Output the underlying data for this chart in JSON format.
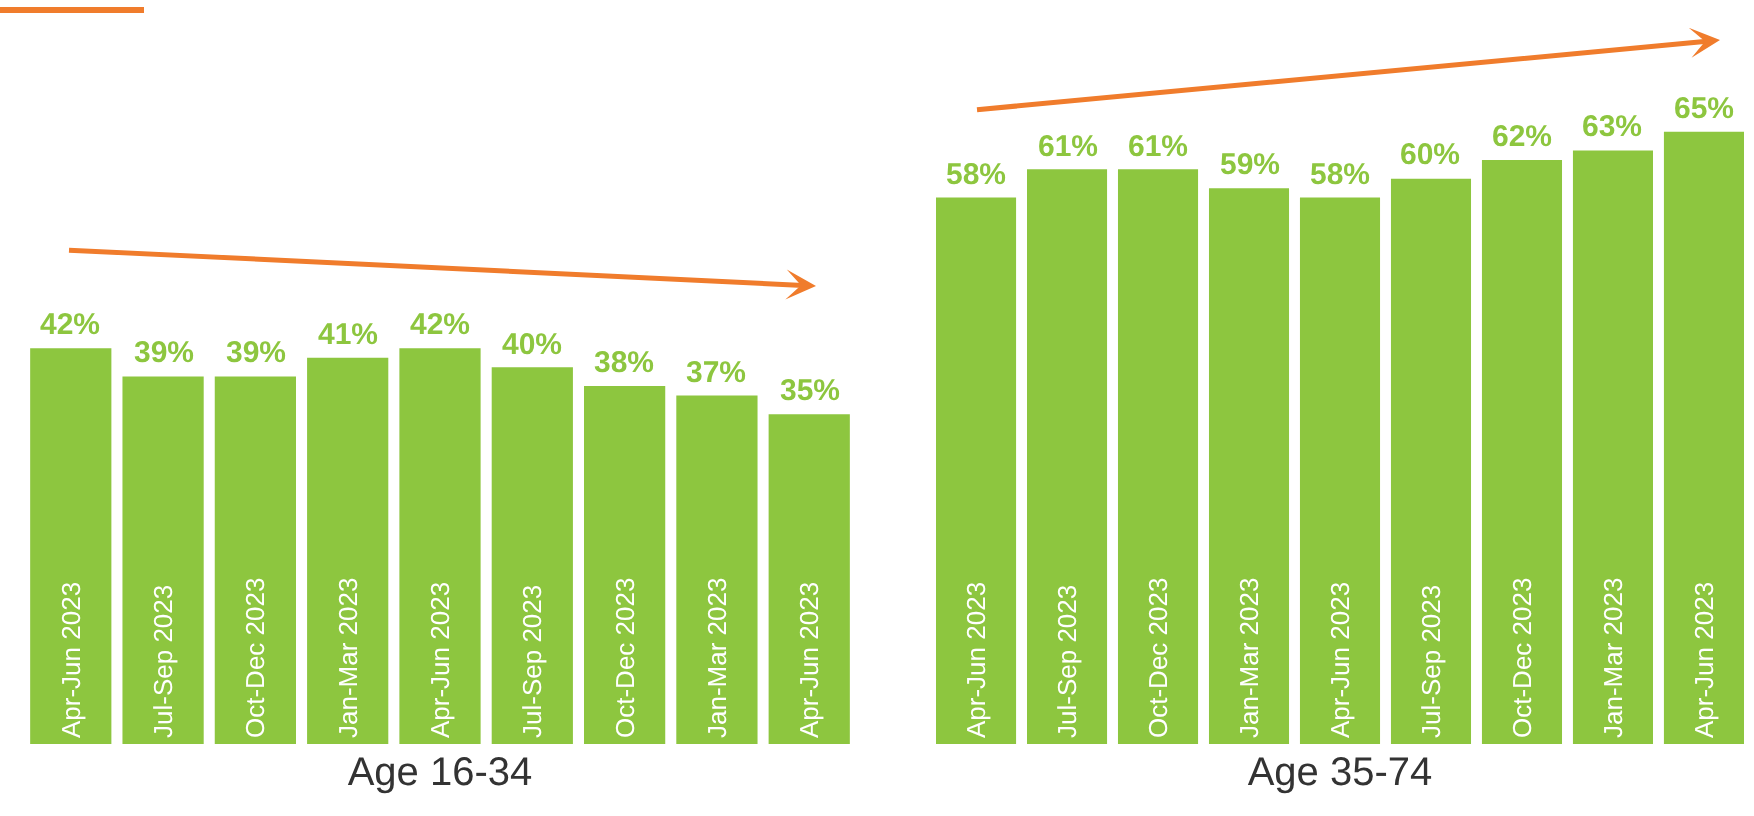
{
  "chart_data": [
    {
      "type": "bar",
      "xlabel": "Age 16-34",
      "color": "#8dc63f",
      "categories": [
        "Apr-Jun 2023",
        "Jul-Sep 2023",
        "Oct-Dec 2023",
        "Jan-Mar 2023",
        "Apr-Jun 2023",
        "Jul-Sep 2023",
        "Oct-Dec 2023",
        "Jan-Mar 2023",
        "Apr-Jun 2023"
      ],
      "values": [
        42,
        39,
        39,
        41,
        42,
        40,
        38,
        37,
        35
      ],
      "value_labels": [
        "42%",
        "39%",
        "39%",
        "41%",
        "42%",
        "40%",
        "38%",
        "37%",
        "35%"
      ]
    },
    {
      "type": "bar",
      "xlabel": "Age 35-74",
      "color": "#8dc63f",
      "categories": [
        "Apr-Jun 2023",
        "Jul-Sep 2023",
        "Oct-Dec 2023",
        "Jan-Mar 2023",
        "Apr-Jun 2023",
        "Jul-Sep 2023",
        "Oct-Dec 2023",
        "Jan-Mar 2023",
        "Apr-Jun 2023"
      ],
      "values": [
        58,
        61,
        61,
        59,
        58,
        60,
        62,
        63,
        65
      ],
      "value_labels": [
        "58%",
        "61%",
        "61%",
        "59%",
        "58%",
        "60%",
        "62%",
        "63%",
        "65%"
      ]
    }
  ]
}
